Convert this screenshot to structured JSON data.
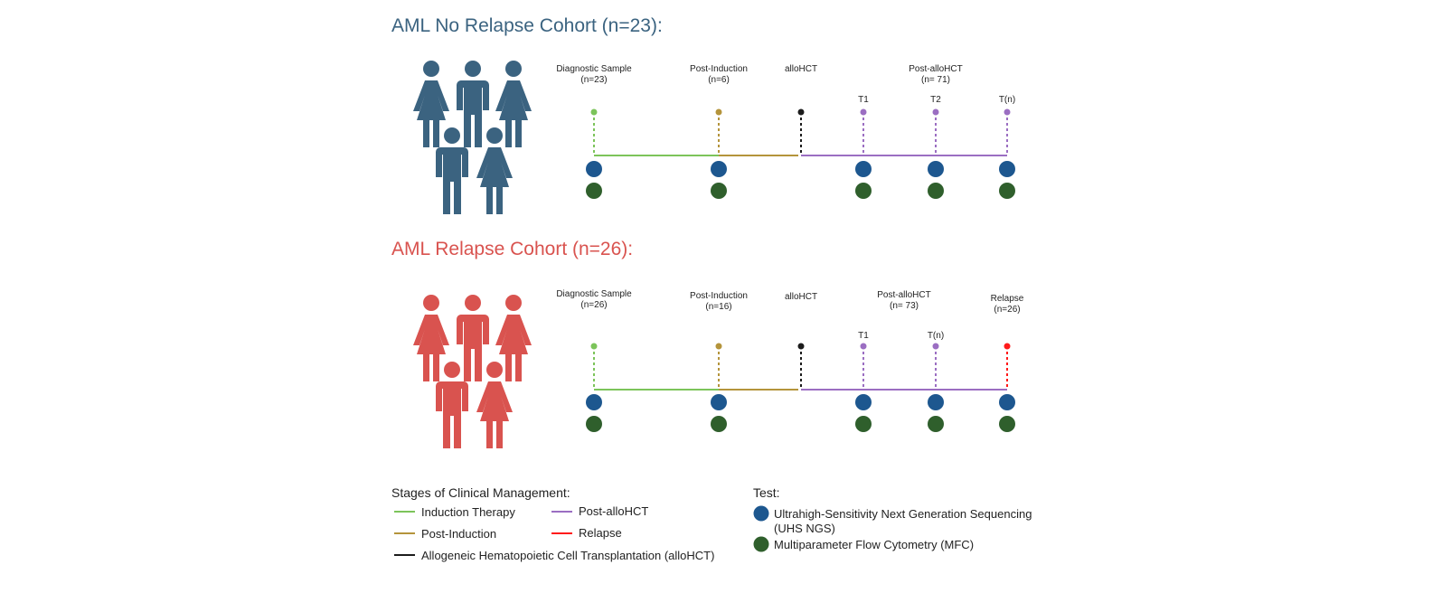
{
  "colors": {
    "blue_cohort": "#3b6380",
    "red_cohort": "#d9534f",
    "induction": "#7cc45a",
    "post_induction": "#b4943b",
    "allohct": "#1c1c1c",
    "post_allohct": "#9b6ec2",
    "relapse": "#ff1a1a",
    "uhs_ngs": "#1d578f",
    "mfc": "#2f5f2c"
  },
  "cohorts": [
    {
      "title": "AML No Relapse Cohort (n=23):",
      "color": "#3b6380",
      "icons": [
        "female-person-icon",
        "male-person-icon",
        "female-person-icon",
        "male-person-icon",
        "female-person-icon"
      ],
      "stage_labels": [
        {
          "line1": "Diagnostic Sample",
          "line2": "(n=23)"
        },
        {
          "line1": "Post-Induction",
          "line2": "(n=6)"
        },
        {
          "line1": "alloHCT",
          "line2": ""
        },
        {
          "line1": "Post-alloHCT",
          "line2": "(n= 71)"
        }
      ],
      "timepoint_labels": [
        "T1",
        "T2",
        "T(n)"
      ]
    },
    {
      "title": "AML Relapse Cohort (n=26):",
      "color": "#d9534f",
      "icons": [
        "female-person-icon",
        "male-person-icon",
        "female-person-icon",
        "male-person-icon",
        "female-person-icon"
      ],
      "stage_labels": [
        {
          "line1": "Diagnostic Sample",
          "line2": "(n=26)"
        },
        {
          "line1": "Post-Induction",
          "line2": "(n=16)"
        },
        {
          "line1": "alloHCT",
          "line2": ""
        },
        {
          "line1": "Post-alloHCT",
          "line2": "(n= 73)"
        },
        {
          "line1": "Relapse",
          "line2": "(n=26)"
        }
      ],
      "timepoint_labels": [
        "T1",
        "T(n)"
      ]
    }
  ],
  "legend": {
    "stages_heading": "Stages of Clinical Management:",
    "stages": [
      {
        "label": "Induction Therapy",
        "color": "#7cc45a"
      },
      {
        "label": "Post-alloHCT",
        "color": "#9b6ec2"
      },
      {
        "label": "Post-Induction",
        "color": "#b4943b"
      },
      {
        "label": "Relapse",
        "color": "#ff1a1a"
      },
      {
        "label": "Allogeneic Hematopoietic Cell Transplantation (alloHCT)",
        "color": "#1c1c1c"
      }
    ],
    "test_heading": "Test:",
    "tests": [
      {
        "line1": "Ultrahigh-Sensitivity Next Generation Sequencing",
        "line2": "(UHS NGS)",
        "color": "#1d578f"
      },
      {
        "line1": "Multiparameter Flow Cytometry (MFC)",
        "line2": "",
        "color": "#2f5f2c"
      }
    ]
  }
}
